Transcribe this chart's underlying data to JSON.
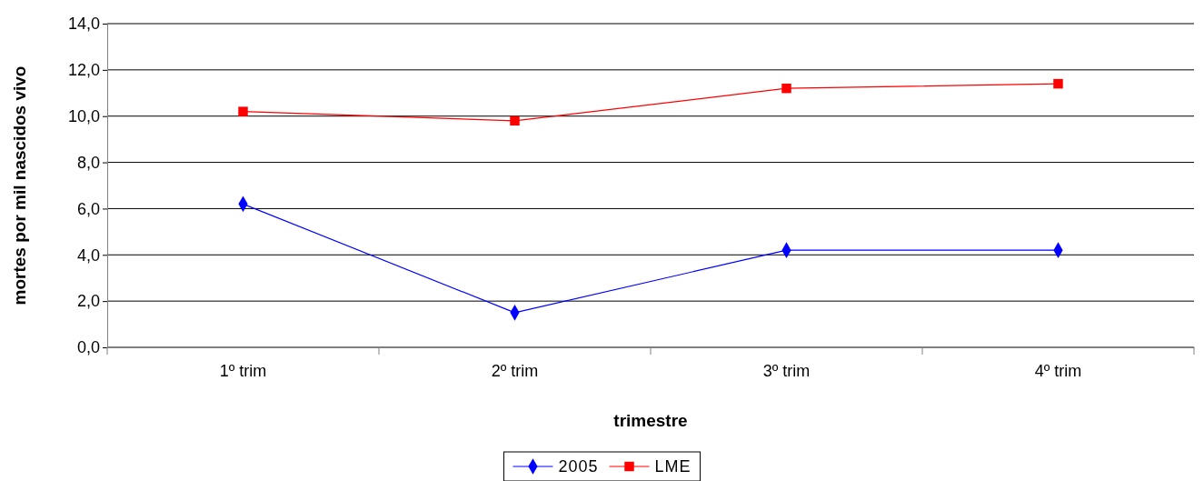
{
  "chart_data": {
    "type": "line",
    "xlabel": "trimestre",
    "ylabel": "mortes por mil nascidos vivo",
    "categories": [
      "1º trim",
      "2º trim",
      "3º trim",
      "4º trim"
    ],
    "series": [
      {
        "name": "2005",
        "color": "#0000ff",
        "marker": "diamond",
        "values": [
          6.2,
          1.5,
          4.2,
          4.2
        ]
      },
      {
        "name": "LME",
        "color": "#ff0000",
        "marker": "square",
        "values": [
          10.2,
          9.8,
          11.2,
          11.4
        ]
      }
    ],
    "ylim": [
      0,
      14
    ],
    "yticks": [
      {
        "value": 0,
        "label": "0,0"
      },
      {
        "value": 2,
        "label": "2,0"
      },
      {
        "value": 4,
        "label": "4,0"
      },
      {
        "value": 6,
        "label": "6,0"
      },
      {
        "value": 8,
        "label": "8,0"
      },
      {
        "value": 10,
        "label": "10,0"
      },
      {
        "value": 12,
        "label": "12,0"
      },
      {
        "value": 14,
        "label": "14,0"
      }
    ],
    "grid": "y",
    "legend": "bottom"
  }
}
